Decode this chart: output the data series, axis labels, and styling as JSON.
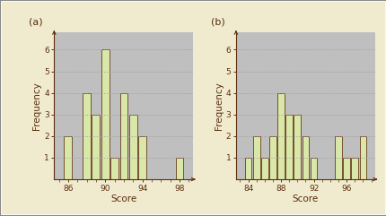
{
  "chart_a": {
    "label": "(a)",
    "bar_positions": [
      86,
      87,
      88,
      89,
      90,
      91,
      92,
      93,
      94,
      98
    ],
    "bar_heights": [
      2,
      0,
      4,
      3,
      6,
      1,
      4,
      3,
      2,
      1
    ],
    "xlim": [
      84.5,
      99.5
    ],
    "xticks": [
      86,
      90,
      94,
      98
    ],
    "xlabel": "Score",
    "ylabel": "Frequency",
    "ylim": [
      0,
      6.8
    ],
    "yticks": [
      1,
      2,
      3,
      4,
      5,
      6
    ]
  },
  "chart_b": {
    "label": "(b)",
    "bar_positions": [
      84,
      85,
      86,
      87,
      88,
      89,
      90,
      91,
      92,
      95,
      96,
      97,
      98
    ],
    "bar_heights": [
      1,
      2,
      1,
      2,
      4,
      3,
      3,
      2,
      1,
      2,
      1,
      1,
      2
    ],
    "xlim": [
      82.5,
      99.5
    ],
    "xticks": [
      84,
      88,
      92,
      96
    ],
    "xlabel": "Score",
    "ylabel": "Frequency",
    "ylim": [
      0,
      6.8
    ],
    "yticks": [
      1,
      2,
      3,
      4,
      5,
      6
    ]
  },
  "bar_color": "#d9e8a8",
  "bar_edge_color": "#6b3a1f",
  "bg_color": "#c0bfbf",
  "outer_bg": "#f0ebcf",
  "grid_color": "#9a9a9a",
  "text_color": "#5a2e0e",
  "figure_border": "#888888",
  "bar_width": 0.85
}
